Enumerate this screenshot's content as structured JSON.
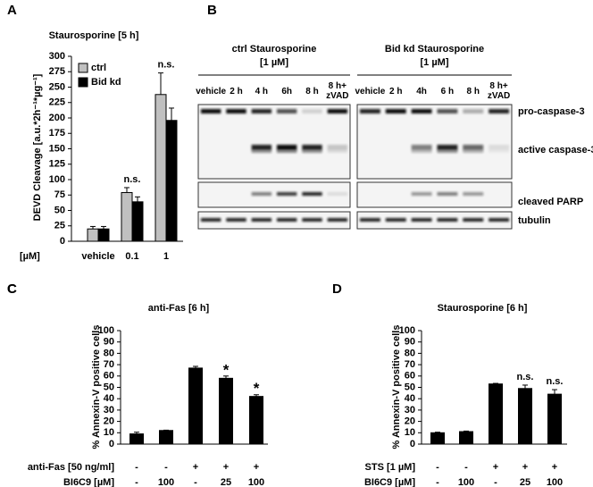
{
  "chart_data": [
    {
      "type": "bar",
      "panel": "A",
      "title": "Staurosporine [5 h]",
      "y_label": "DEVD Cleavage [a.u.*2h⁻¹*µg⁻¹]",
      "x_label": "[µM]",
      "categories": [
        "vehicle",
        "0.1",
        "1"
      ],
      "series": [
        {
          "name": "ctrl",
          "color": "#c0c0c0",
          "values": [
            20,
            79,
            238
          ],
          "errors": [
            4,
            8,
            35
          ]
        },
        {
          "name": "Bid kd",
          "color": "#000000",
          "values": [
            20,
            64,
            196
          ],
          "errors": [
            4,
            8,
            20
          ]
        }
      ],
      "annotations": [
        null,
        "n.s.",
        "n.s."
      ],
      "ylim": [
        0,
        300
      ],
      "yticks": [
        0,
        25,
        50,
        75,
        100,
        125,
        150,
        175,
        200,
        225,
        250,
        275,
        300
      ],
      "grid": false
    },
    {
      "type": "bar",
      "panel": "C",
      "title": "anti-Fas [6 h]",
      "y_label": "% Annexin-V positive cells",
      "categories": [
        null,
        null,
        null,
        null,
        null
      ],
      "color": "#000000",
      "values": [
        9,
        12,
        67,
        58,
        42
      ],
      "errors": [
        1.5,
        0.3,
        1.5,
        2,
        1.5
      ],
      "annotations": [
        null,
        null,
        null,
        "*",
        "*"
      ],
      "table": [
        {
          "label": "anti-Fas [50 ng/ml]",
          "cells": [
            "-",
            "-",
            "+",
            "+",
            "+"
          ]
        },
        {
          "label": "BI6C9 [µM]",
          "cells": [
            "-",
            "100",
            "-",
            "25",
            "100"
          ]
        }
      ],
      "ylim": [
        0,
        100
      ],
      "yticks": [
        0,
        10,
        20,
        30,
        40,
        50,
        60,
        70,
        80,
        90,
        100
      ],
      "grid": false
    },
    {
      "type": "bar",
      "panel": "D",
      "title": "Staurosporine [6 h]",
      "y_label": "% Annexin-V positive cells",
      "categories": [
        null,
        null,
        null,
        null,
        null
      ],
      "color": "#000000",
      "values": [
        10,
        11,
        53,
        49,
        44
      ],
      "errors": [
        0.5,
        0.5,
        0.5,
        3,
        4
      ],
      "annotations": [
        null,
        null,
        null,
        "n.s.",
        "n.s."
      ],
      "table": [
        {
          "label": "STS [1 µM]",
          "cells": [
            "-",
            "-",
            "+",
            "+",
            "+"
          ]
        },
        {
          "label": "BI6C9 [µM]",
          "cells": [
            "-",
            "100",
            "-",
            "25",
            "100"
          ]
        }
      ],
      "ylim": [
        0,
        100
      ],
      "yticks": [
        0,
        10,
        20,
        30,
        40,
        50,
        60,
        70,
        80,
        90,
        100
      ],
      "grid": false
    }
  ],
  "blot": {
    "panel": "B",
    "groups": [
      {
        "title": "ctrl Staurosporine",
        "subtitle": "[1 µM]",
        "lanes": [
          "vehicle",
          "2 h",
          "4 h",
          "6h",
          "8 h",
          "8 h+ zVAD"
        ]
      },
      {
        "title": "Bid kd Staurosporine",
        "subtitle": "[1 µM]",
        "lanes": [
          "vehicle",
          "2 h",
          "4h",
          "6 h",
          "8 h",
          "8 h+ zVAD"
        ]
      }
    ],
    "rows": [
      "pro-caspase-3",
      "active caspase-3",
      "cleaved PARP",
      "tubulin"
    ]
  }
}
